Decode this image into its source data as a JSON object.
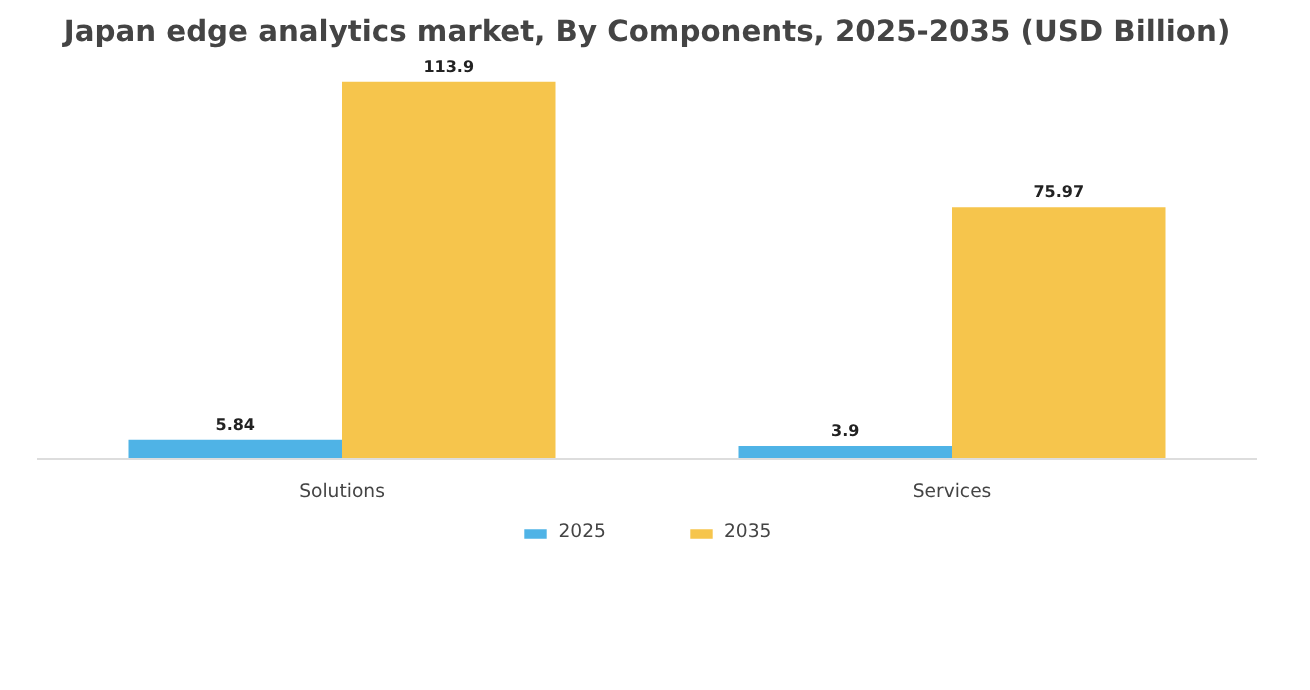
{
  "chart_data": {
    "type": "bar",
    "title": "Japan edge analytics market, By Components, 2025-2035 (USD Billion)",
    "categories": [
      "Solutions",
      "Services"
    ],
    "series": [
      {
        "name": "2025",
        "color": "#4fb3e6",
        "values": [
          5.84,
          3.9
        ]
      },
      {
        "name": "2035",
        "color": "#f6c54c",
        "values": [
          113.9,
          75.97
        ]
      }
    ],
    "data_labels": true,
    "legend": "bottom"
  }
}
